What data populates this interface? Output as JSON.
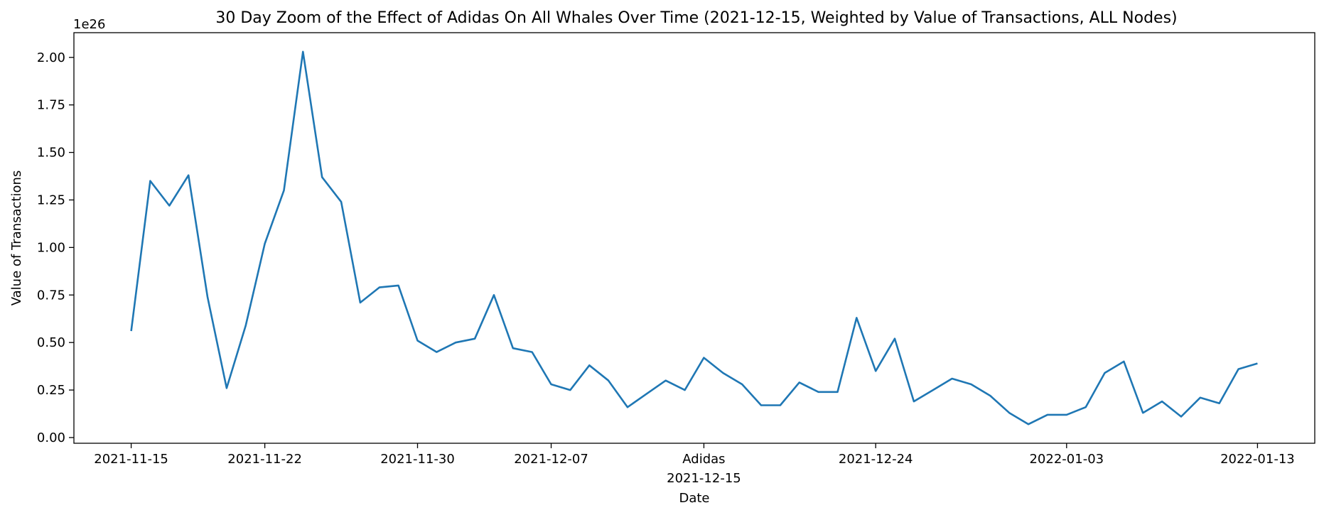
{
  "chart_data": {
    "type": "line",
    "title": "30 Day Zoom of the Effect of Adidas On All Whales Over Time (2021-12-15, Weighted by Value of Transactions, ALL Nodes)",
    "xlabel": "Date",
    "ylabel": "Value of Transactions",
    "y_offset_label": "1e26",
    "y_scale": 1e+26,
    "ylim": [
      -0.03,
      2.13
    ],
    "xlim": [
      "2021-11-12",
      "2022-01-16"
    ],
    "grid": false,
    "line_color": "#1f77b4",
    "x_ticks": [
      {
        "date": "2021-11-15",
        "label": "2021-11-15"
      },
      {
        "date": "2021-11-22",
        "label": "2021-11-22"
      },
      {
        "date": "2021-11-30",
        "label": "2021-11-30"
      },
      {
        "date": "2021-12-07",
        "label": "2021-12-07"
      },
      {
        "date": "2021-12-15",
        "label": "Adidas"
      },
      {
        "date": "2021-12-24",
        "label": "2021-12-24"
      },
      {
        "date": "2022-01-03",
        "label": "2022-01-03"
      },
      {
        "date": "2022-01-13",
        "label": "2022-01-13"
      }
    ],
    "event_label": "2021-12-15",
    "y_ticks": [
      {
        "value": 0.0,
        "label": "0.00"
      },
      {
        "value": 0.25,
        "label": "0.25"
      },
      {
        "value": 0.5,
        "label": "0.50"
      },
      {
        "value": 0.75,
        "label": "0.75"
      },
      {
        "value": 1.0,
        "label": "1.00"
      },
      {
        "value": 1.25,
        "label": "1.25"
      },
      {
        "value": 1.5,
        "label": "1.50"
      },
      {
        "value": 1.75,
        "label": "1.75"
      },
      {
        "value": 2.0,
        "label": "2.00"
      }
    ],
    "series": [
      {
        "x": [
          "2021-11-15",
          "2021-11-16",
          "2021-11-17",
          "2021-11-18",
          "2021-11-19",
          "2021-11-20",
          "2021-11-21",
          "2021-11-22",
          "2021-11-23",
          "2021-11-24",
          "2021-11-25",
          "2021-11-26",
          "2021-11-27",
          "2021-11-28",
          "2021-11-29",
          "2021-11-30",
          "2021-12-01",
          "2021-12-02",
          "2021-12-03",
          "2021-12-04",
          "2021-12-05",
          "2021-12-06",
          "2021-12-07",
          "2021-12-08",
          "2021-12-09",
          "2021-12-10",
          "2021-12-11",
          "2021-12-12",
          "2021-12-13",
          "2021-12-14",
          "2021-12-15",
          "2021-12-16",
          "2021-12-17",
          "2021-12-18",
          "2021-12-19",
          "2021-12-20",
          "2021-12-21",
          "2021-12-22",
          "2021-12-23",
          "2021-12-24",
          "2021-12-25",
          "2021-12-26",
          "2021-12-27",
          "2021-12-28",
          "2021-12-29",
          "2021-12-30",
          "2021-12-31",
          "2022-01-01",
          "2022-01-02",
          "2022-01-03",
          "2022-01-04",
          "2022-01-05",
          "2022-01-06",
          "2022-01-07",
          "2022-01-08",
          "2022-01-09",
          "2022-01-10",
          "2022-01-11",
          "2022-01-12",
          "2022-01-13"
        ],
        "values": [
          0.56,
          1.35,
          1.22,
          1.38,
          0.74,
          0.26,
          0.59,
          1.02,
          1.3,
          2.03,
          1.37,
          1.24,
          0.71,
          0.79,
          0.8,
          0.51,
          0.45,
          0.5,
          0.52,
          0.75,
          0.47,
          0.45,
          0.28,
          0.25,
          0.38,
          0.3,
          0.16,
          0.23,
          0.3,
          0.25,
          0.42,
          0.34,
          0.28,
          0.17,
          0.17,
          0.29,
          0.24,
          0.24,
          0.63,
          0.35,
          0.52,
          0.19,
          0.25,
          0.31,
          0.28,
          0.22,
          0.13,
          0.07,
          0.12,
          0.12,
          0.16,
          0.34,
          0.4,
          0.13,
          0.19,
          0.11,
          0.21,
          0.18,
          0.36,
          0.39
        ]
      }
    ]
  }
}
